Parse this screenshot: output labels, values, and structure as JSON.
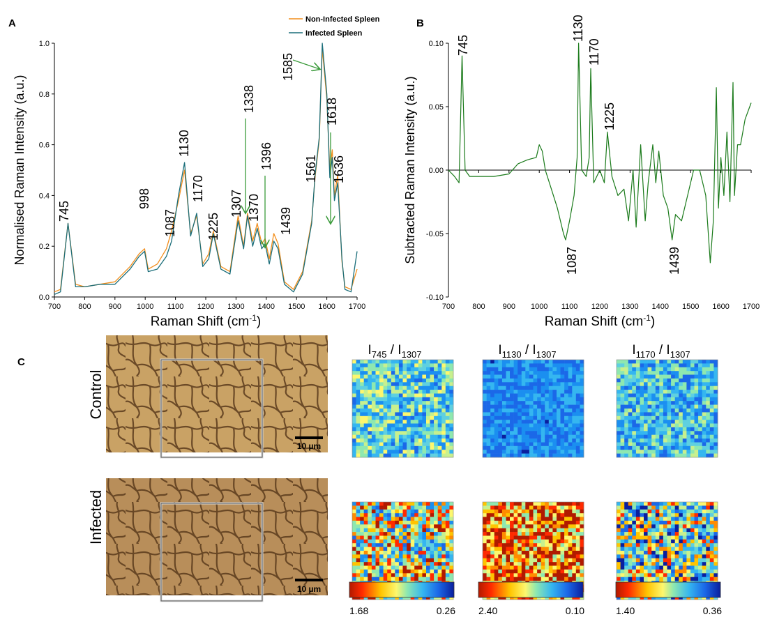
{
  "panel_labels": {
    "a": "A",
    "b": "B",
    "c": "C"
  },
  "panel_a": {
    "xlabel": "Raman Shift (cm",
    "xlabel_sup": "-1",
    "xlabel_end": ")",
    "ylabel": "Normalised Raman Intensity (a.u.)",
    "xticks": [
      "700",
      "800",
      "900",
      "1000",
      "1100",
      "1200",
      "1300",
      "1400",
      "1500",
      "1600",
      "1700"
    ],
    "yticks": [
      "0.0",
      "0.2",
      "0.4",
      "0.6",
      "0.8",
      "1.0"
    ],
    "legend": [
      "Non-Infected Spleen",
      "Infected Spleen"
    ],
    "peak_labels": [
      "745",
      "998",
      "1087",
      "1130",
      "1170",
      "1225",
      "1307",
      "1338",
      "1370",
      "1396",
      "1439",
      "1561",
      "1585",
      "1618",
      "1636"
    ]
  },
  "panel_b": {
    "xlabel": "Raman Shift (cm",
    "xlabel_sup": "-1",
    "xlabel_end": ")",
    "ylabel": "Subtracted Raman Intensity (a.u.)",
    "xticks": [
      "700",
      "800",
      "900",
      "1000",
      "1100",
      "1200",
      "1300",
      "1400",
      "1500",
      "1600",
      "1700"
    ],
    "yticks": [
      "0.10",
      "0.05",
      "0.00",
      "-0.05",
      "-0.10"
    ],
    "peak_labels": [
      "745",
      "1130",
      "1170",
      "1225",
      "1087",
      "1439"
    ]
  },
  "panel_c": {
    "row_labels": [
      "Control",
      "Infected"
    ],
    "scale_bar": "10 µm",
    "map_titles": [
      {
        "main": "I",
        "sub1": "745",
        "sep": " / I",
        "sub2": "1307"
      },
      {
        "main": "I",
        "sub1": "1130",
        "sep": " / I",
        "sub2": "1307"
      },
      {
        "main": "I",
        "sub1": "1170",
        "sep": " / I",
        "sub2": "1307"
      }
    ],
    "colorbars": [
      {
        "min": "1.68",
        "max": "0.26"
      },
      {
        "min": "2.40",
        "max": "0.10"
      },
      {
        "min": "1.40",
        "max": "0.36"
      }
    ]
  },
  "colors": {
    "non_infected": "#f28e1c",
    "infected": "#1b6e7a",
    "subtracted": "#1a7a1a",
    "arrow": "#3a9a3a"
  },
  "chart_data": [
    {
      "type": "line",
      "xlabel": "Raman Shift (cm-1)",
      "ylabel": "Normalised Raman Intensity (a.u.)",
      "xlim": [
        700,
        1700
      ],
      "ylim": [
        0,
        1.0
      ],
      "series": [
        {
          "name": "Non-Infected Spleen",
          "x": [
            700,
            720,
            745,
            770,
            800,
            850,
            900,
            950,
            980,
            998,
            1010,
            1040,
            1070,
            1087,
            1110,
            1130,
            1150,
            1170,
            1190,
            1210,
            1225,
            1250,
            1280,
            1307,
            1325,
            1338,
            1355,
            1370,
            1385,
            1396,
            1410,
            1425,
            1439,
            1460,
            1490,
            1520,
            1550,
            1561,
            1575,
            1585,
            1600,
            1610,
            1618,
            1625,
            1636,
            1650,
            1660,
            1680,
            1700
          ],
          "y": [
            0.02,
            0.03,
            0.29,
            0.05,
            0.04,
            0.05,
            0.06,
            0.12,
            0.17,
            0.19,
            0.11,
            0.13,
            0.19,
            0.26,
            0.38,
            0.5,
            0.25,
            0.32,
            0.13,
            0.17,
            0.26,
            0.12,
            0.1,
            0.32,
            0.2,
            0.33,
            0.22,
            0.29,
            0.21,
            0.23,
            0.15,
            0.25,
            0.21,
            0.06,
            0.03,
            0.1,
            0.3,
            0.47,
            0.62,
            0.98,
            0.78,
            0.5,
            0.58,
            0.4,
            0.48,
            0.14,
            0.04,
            0.03,
            0.11
          ]
        },
        {
          "name": "Infected Spleen",
          "x": [
            700,
            720,
            745,
            770,
            800,
            850,
            900,
            950,
            980,
            998,
            1010,
            1040,
            1070,
            1087,
            1110,
            1130,
            1150,
            1170,
            1190,
            1210,
            1225,
            1250,
            1280,
            1307,
            1325,
            1338,
            1355,
            1370,
            1385,
            1396,
            1410,
            1425,
            1439,
            1460,
            1490,
            1520,
            1550,
            1561,
            1575,
            1585,
            1600,
            1610,
            1618,
            1625,
            1636,
            1650,
            1660,
            1680,
            1700
          ],
          "y": [
            0.01,
            0.02,
            0.29,
            0.04,
            0.04,
            0.05,
            0.05,
            0.11,
            0.16,
            0.18,
            0.1,
            0.11,
            0.16,
            0.22,
            0.4,
            0.53,
            0.24,
            0.33,
            0.12,
            0.15,
            0.25,
            0.11,
            0.09,
            0.3,
            0.19,
            0.32,
            0.2,
            0.27,
            0.19,
            0.21,
            0.13,
            0.22,
            0.19,
            0.05,
            0.02,
            0.09,
            0.29,
            0.48,
            0.63,
            1.0,
            0.8,
            0.47,
            0.55,
            0.38,
            0.45,
            0.15,
            0.03,
            0.02,
            0.18
          ]
        }
      ]
    },
    {
      "type": "line",
      "xlabel": "Raman Shift (cm-1)",
      "ylabel": "Subtracted Raman Intensity (a.u.)",
      "xlim": [
        700,
        1700
      ],
      "ylim": [
        -0.1,
        0.1
      ],
      "series": [
        {
          "x": [
            700,
            720,
            735,
            745,
            755,
            770,
            800,
            850,
            900,
            930,
            960,
            990,
            1000,
            1010,
            1020,
            1040,
            1060,
            1080,
            1087,
            1100,
            1115,
            1125,
            1130,
            1140,
            1155,
            1165,
            1170,
            1180,
            1200,
            1215,
            1225,
            1240,
            1260,
            1280,
            1295,
            1310,
            1320,
            1335,
            1350,
            1360,
            1375,
            1385,
            1395,
            1410,
            1425,
            1439,
            1450,
            1470,
            1490,
            1510,
            1530,
            1550,
            1565,
            1575,
            1585,
            1592,
            1600,
            1610,
            1620,
            1630,
            1640,
            1645,
            1655,
            1665,
            1680,
            1700
          ],
          "y": [
            0.0,
            -0.005,
            -0.01,
            0.09,
            0.0,
            -0.005,
            -0.005,
            -0.005,
            -0.003,
            0.005,
            0.008,
            0.01,
            0.02,
            0.015,
            0.0,
            -0.015,
            -0.03,
            -0.05,
            -0.055,
            -0.04,
            -0.02,
            0.01,
            0.1,
            0.0,
            -0.005,
            0.01,
            0.08,
            -0.01,
            0.0,
            -0.01,
            0.03,
            -0.005,
            -0.02,
            -0.015,
            -0.04,
            0.0,
            -0.045,
            0.02,
            -0.04,
            -0.01,
            0.02,
            -0.01,
            0.015,
            -0.02,
            -0.03,
            -0.055,
            -0.035,
            -0.04,
            -0.02,
            0.0,
            0.0,
            -0.02,
            -0.073,
            -0.04,
            0.065,
            -0.03,
            0.01,
            -0.02,
            0.03,
            -0.025,
            0.069,
            -0.02,
            0.02,
            0.02,
            0.04,
            0.053
          ]
        }
      ]
    }
  ]
}
